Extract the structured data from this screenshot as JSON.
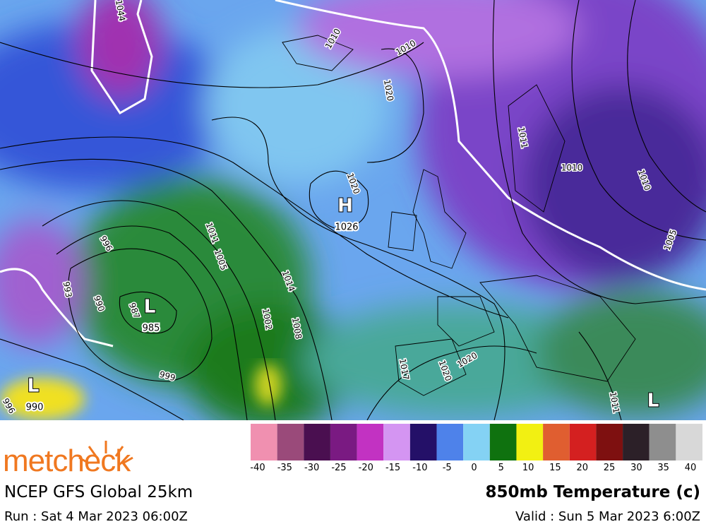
{
  "map": {
    "isobar_labels": [
      1044,
      1010,
      1010,
      1020,
      1020,
      1014,
      1011,
      1005,
      1002,
      1008,
      996,
      993,
      990,
      987,
      999,
      996,
      1017,
      1020,
      1020,
      1011,
      1010,
      1010,
      1005,
      1011
    ],
    "centers": [
      {
        "letter": "H",
        "pressure": 1026
      },
      {
        "letter": "L",
        "pressure": 985
      },
      {
        "letter": "L",
        "pressure": 990
      },
      {
        "letter": "L"
      }
    ]
  },
  "legend": {
    "colors": [
      "#f090b0",
      "#9a4a7a",
      "#4a0f50",
      "#7a1a82",
      "#c232c2",
      "#d495f2",
      "#241068",
      "#4e82ea",
      "#84d2f4",
      "#0f720f",
      "#f2f012",
      "#e05e30",
      "#d42020",
      "#7e1010",
      "#2c2028",
      "#8e8e8e",
      "#d8d8d8"
    ],
    "labels": [
      -40,
      -35,
      -30,
      -25,
      -20,
      -15,
      -10,
      -5,
      0,
      5,
      10,
      15,
      20,
      25,
      30,
      35,
      40
    ]
  },
  "footer": {
    "logo": "metcheck",
    "model": "NCEP GFS Global 25km",
    "run": "Run : Sat 4 Mar 2023 06:00Z",
    "product": "850mb Temperature (c)",
    "valid": "Valid : Sun 5 Mar 2023 6:00Z"
  }
}
